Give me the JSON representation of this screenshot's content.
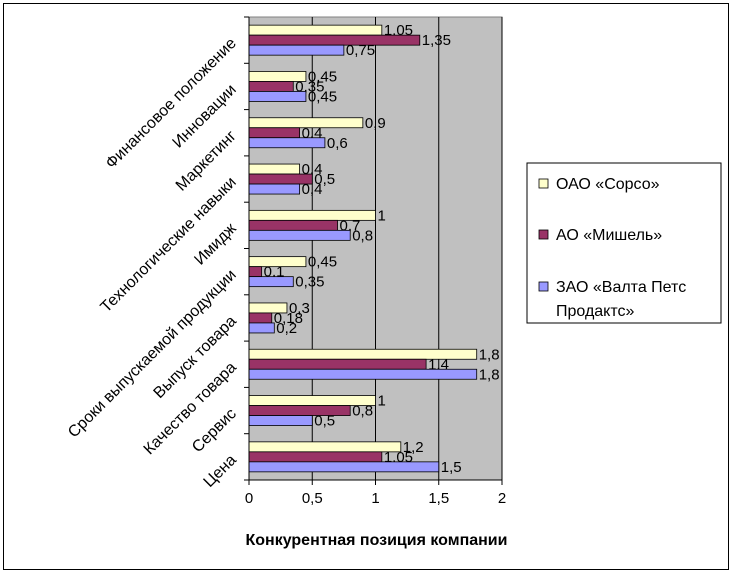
{
  "chart_data": {
    "type": "bar",
    "orientation": "horizontal",
    "categories": [
      "Финансовое положение",
      "Инновации",
      "Маркетинг",
      "Технологические навыки",
      "Имидж",
      "Сроки выпускаемой продукции",
      "Выпуск товара",
      "Качество товара",
      "Сервис",
      "Цена"
    ],
    "series": [
      {
        "name": "ОАО «Сорсо»",
        "color": "#ffffcc",
        "values": [
          1.05,
          0.45,
          0.9,
          0.4,
          1,
          0.45,
          0.3,
          1.8,
          1,
          1.2
        ],
        "labels": [
          "1,05",
          "0,45",
          "0,9",
          "0,4",
          "1",
          "0,45",
          "0,3",
          "1,8",
          "1",
          "1,2"
        ]
      },
      {
        "name": "АО «Мишель»",
        "color": "#993366",
        "values": [
          1.35,
          0.35,
          0.4,
          0.5,
          0.7,
          0.1,
          0.18,
          1.4,
          0.8,
          1.05
        ],
        "labels": [
          "1,35",
          "0,35",
          "0,4",
          "0,5",
          "0,7",
          "0,1",
          "0,18",
          "1,4",
          "0,8",
          "1,05"
        ]
      },
      {
        "name": "ЗАО «Валта Петс Продактс»",
        "color": "#9999ff",
        "values": [
          0.75,
          0.45,
          0.6,
          0.4,
          0.8,
          0.35,
          0.2,
          1.8,
          0.5,
          1.5
        ],
        "labels": [
          "0,75",
          "0,45",
          "0,6",
          "0,4",
          "0,8",
          "0,35",
          "0,2",
          "1,8",
          "0,5",
          "1,5"
        ]
      }
    ],
    "xlabel": "Конкурентная позиция компании",
    "ylabel": "",
    "xlim": [
      0,
      2
    ],
    "xticks": [
      0,
      0.5,
      1,
      1.5,
      2
    ],
    "xtick_labels": [
      "0",
      "0,5",
      "1",
      "1,5",
      "2"
    ],
    "grid": "vertical",
    "plot_background": "#c0c0c0",
    "legend": "right",
    "legend_lines": [
      [
        "ОАО «Сорсо»"
      ],
      [
        "АО «Мишель»"
      ],
      [
        "ЗАО «Валта Петс",
        "Продактс»"
      ]
    ]
  }
}
